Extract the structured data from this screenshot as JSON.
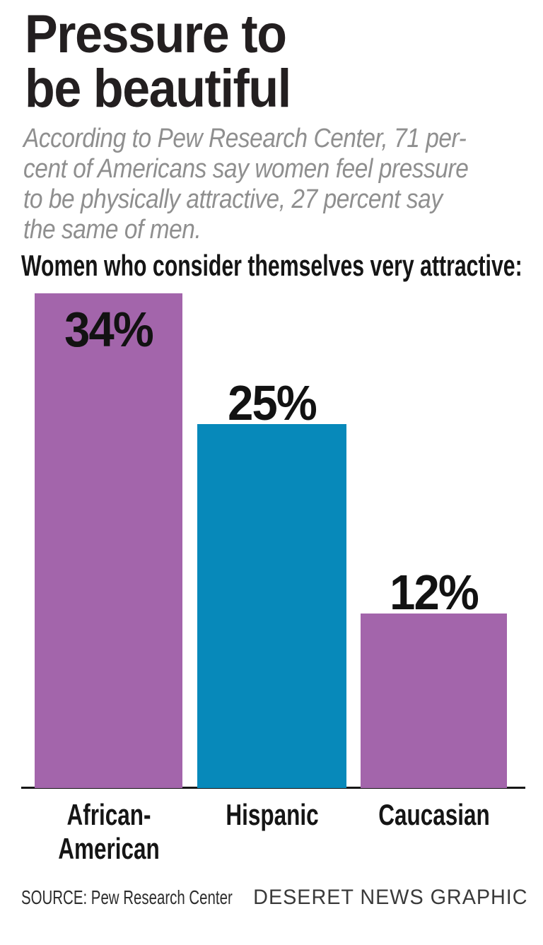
{
  "header": {
    "title_line1": "Pressure to",
    "title_line2": "be beautiful",
    "subtitle_text": "According to Pew Research Center, 71 percent of Americans say women feel pressure to be physically attractive, 27 percent say the same of men.",
    "subtitle_lines": [
      "According to Pew Research Center, 71 per-",
      "cent of Americans say women feel pressure",
      "to be physically attractive, 27 percent say",
      "the same of men."
    ]
  },
  "chart_data": {
    "type": "bar",
    "title": "Women who consider themselves very attractive:",
    "categories": [
      "African-American",
      "Hispanic",
      "Caucasian"
    ],
    "category_label_lines": [
      [
        "African-",
        "American"
      ],
      [
        "Hispanic"
      ],
      [
        "Caucasian"
      ]
    ],
    "values": [
      34,
      25,
      12
    ],
    "value_labels": [
      "34%",
      "25%",
      "12%"
    ],
    "bar_colors": [
      "#a365ab",
      "#0789ba",
      "#a365ab"
    ],
    "xlabel": "",
    "ylabel": "",
    "ylim": [
      0,
      34
    ],
    "grid": false,
    "legend": false,
    "colors": {
      "purple": "#a365ab",
      "blue": "#0789ba",
      "axis": "#161616",
      "title": "#231f20",
      "subtitle": "#8f8f8f",
      "text": "#151515"
    }
  },
  "footer": {
    "source": "SOURCE: Pew Research Center",
    "credit": "DESERET NEWS GRAPHIC"
  }
}
